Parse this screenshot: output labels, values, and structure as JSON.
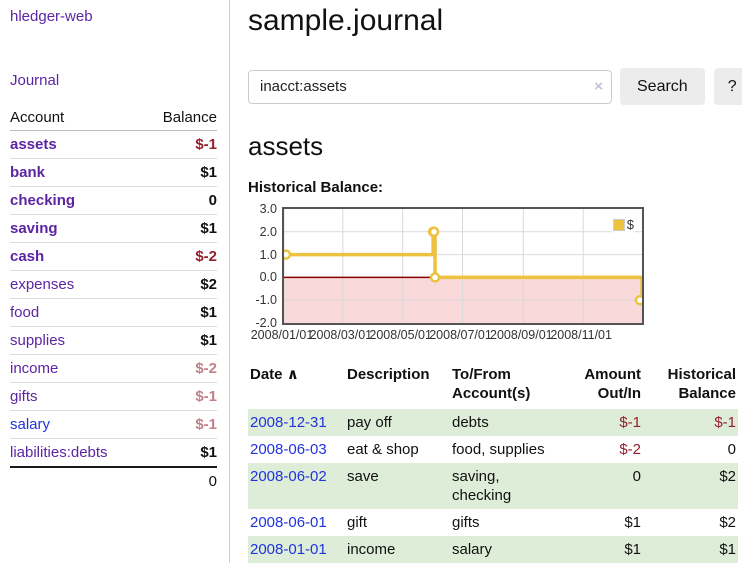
{
  "sidebar": {
    "brand": "hledger-web",
    "journal_link": "Journal",
    "accounts_table": {
      "header_account": "Account",
      "header_balance": "Balance",
      "rows": [
        {
          "name": "assets",
          "balance": "$-1"
        },
        {
          "name": "bank",
          "balance": "$1"
        },
        {
          "name": "checking",
          "balance": "0"
        },
        {
          "name": "saving",
          "balance": "$1"
        },
        {
          "name": "cash",
          "balance": "$-2"
        },
        {
          "name": "expenses",
          "balance": "$2"
        },
        {
          "name": "food",
          "balance": "$1"
        },
        {
          "name": "supplies",
          "balance": "$1"
        },
        {
          "name": "income",
          "balance": "$-2"
        },
        {
          "name": "gifts",
          "balance": "$-1"
        },
        {
          "name": "salary",
          "balance": "$-1"
        },
        {
          "name": "liabilities:debts",
          "balance": "$1"
        }
      ],
      "total": "0"
    }
  },
  "header": {
    "title": "sample.journal"
  },
  "search": {
    "value": "inacct:assets",
    "clear_icon": "×",
    "button_label": "Search",
    "help_label": "?"
  },
  "account_page": {
    "heading": "assets",
    "chart_label": "Historical Balance:"
  },
  "chart_data": {
    "type": "line",
    "step": true,
    "title": "Historical Balance",
    "legend": "$",
    "legend_position": "top-right",
    "series": [
      {
        "name": "$",
        "color": "#edc240",
        "points": [
          {
            "date": "2008-01-01",
            "day": 0,
            "value": 1
          },
          {
            "date": "2008-06-01",
            "day": 152,
            "value": 2
          },
          {
            "date": "2008-06-02",
            "day": 153,
            "value": 2
          },
          {
            "date": "2008-06-03",
            "day": 154,
            "value": 0
          },
          {
            "date": "2008-12-31",
            "day": 365,
            "value": -1
          }
        ]
      }
    ],
    "ylim": [
      -2,
      3
    ],
    "yticks": [
      {
        "label": "3.0",
        "value": 3
      },
      {
        "label": "2.0",
        "value": 2
      },
      {
        "label": "1.0",
        "value": 1
      },
      {
        "label": "0.0",
        "value": 0
      },
      {
        "label": "-1.0",
        "value": -1
      },
      {
        "label": "-2.0",
        "value": -2
      }
    ],
    "xticks": [
      {
        "label": "2008/01/01",
        "day": 0
      },
      {
        "label": "2008/03/01",
        "day": 60
      },
      {
        "label": "2008/05/01",
        "day": 121
      },
      {
        "label": "2008/07/01",
        "day": 182
      },
      {
        "label": "2008/09/01",
        "day": 244
      },
      {
        "label": "2008/11/01",
        "day": 305
      }
    ],
    "x_range_days": 365,
    "grid": true,
    "grid_color": "#d9d9d9",
    "zero_line_color": "#8b0000",
    "negative_region_fill": "#f9d9d9",
    "border_color": "#545454"
  },
  "register_table": {
    "headers": {
      "date": "Date",
      "sort_icon": "∧",
      "description": "Description",
      "accounts": "To/From Account(s)",
      "amount": "Amount Out/In",
      "balance": "Historical Balance"
    },
    "rows": [
      {
        "date": "2008-12-31",
        "description": "pay off",
        "accounts": "debts",
        "amount": "$-1",
        "balance": "$-1"
      },
      {
        "date": "2008-06-03",
        "description": "eat & shop",
        "accounts": "food, supplies",
        "amount": "$-2",
        "balance": "0"
      },
      {
        "date": "2008-06-02",
        "description": "save",
        "accounts": "saving,\nchecking",
        "amount": "0",
        "balance": "$2"
      },
      {
        "date": "2008-06-01",
        "description": "gift",
        "accounts": "gifts",
        "amount": "$1",
        "balance": "$2"
      },
      {
        "date": "2008-01-01",
        "description": "income",
        "accounts": "salary",
        "amount": "$1",
        "balance": "$1"
      }
    ]
  },
  "colors": {
    "link_purple": "#5c25a2",
    "link_blue": "#2233dd",
    "negative_strong": "#941f2d",
    "negative_soft": "#c1808a",
    "row_stripe_green": "#deedd8",
    "series_yellow": "#edc240"
  }
}
